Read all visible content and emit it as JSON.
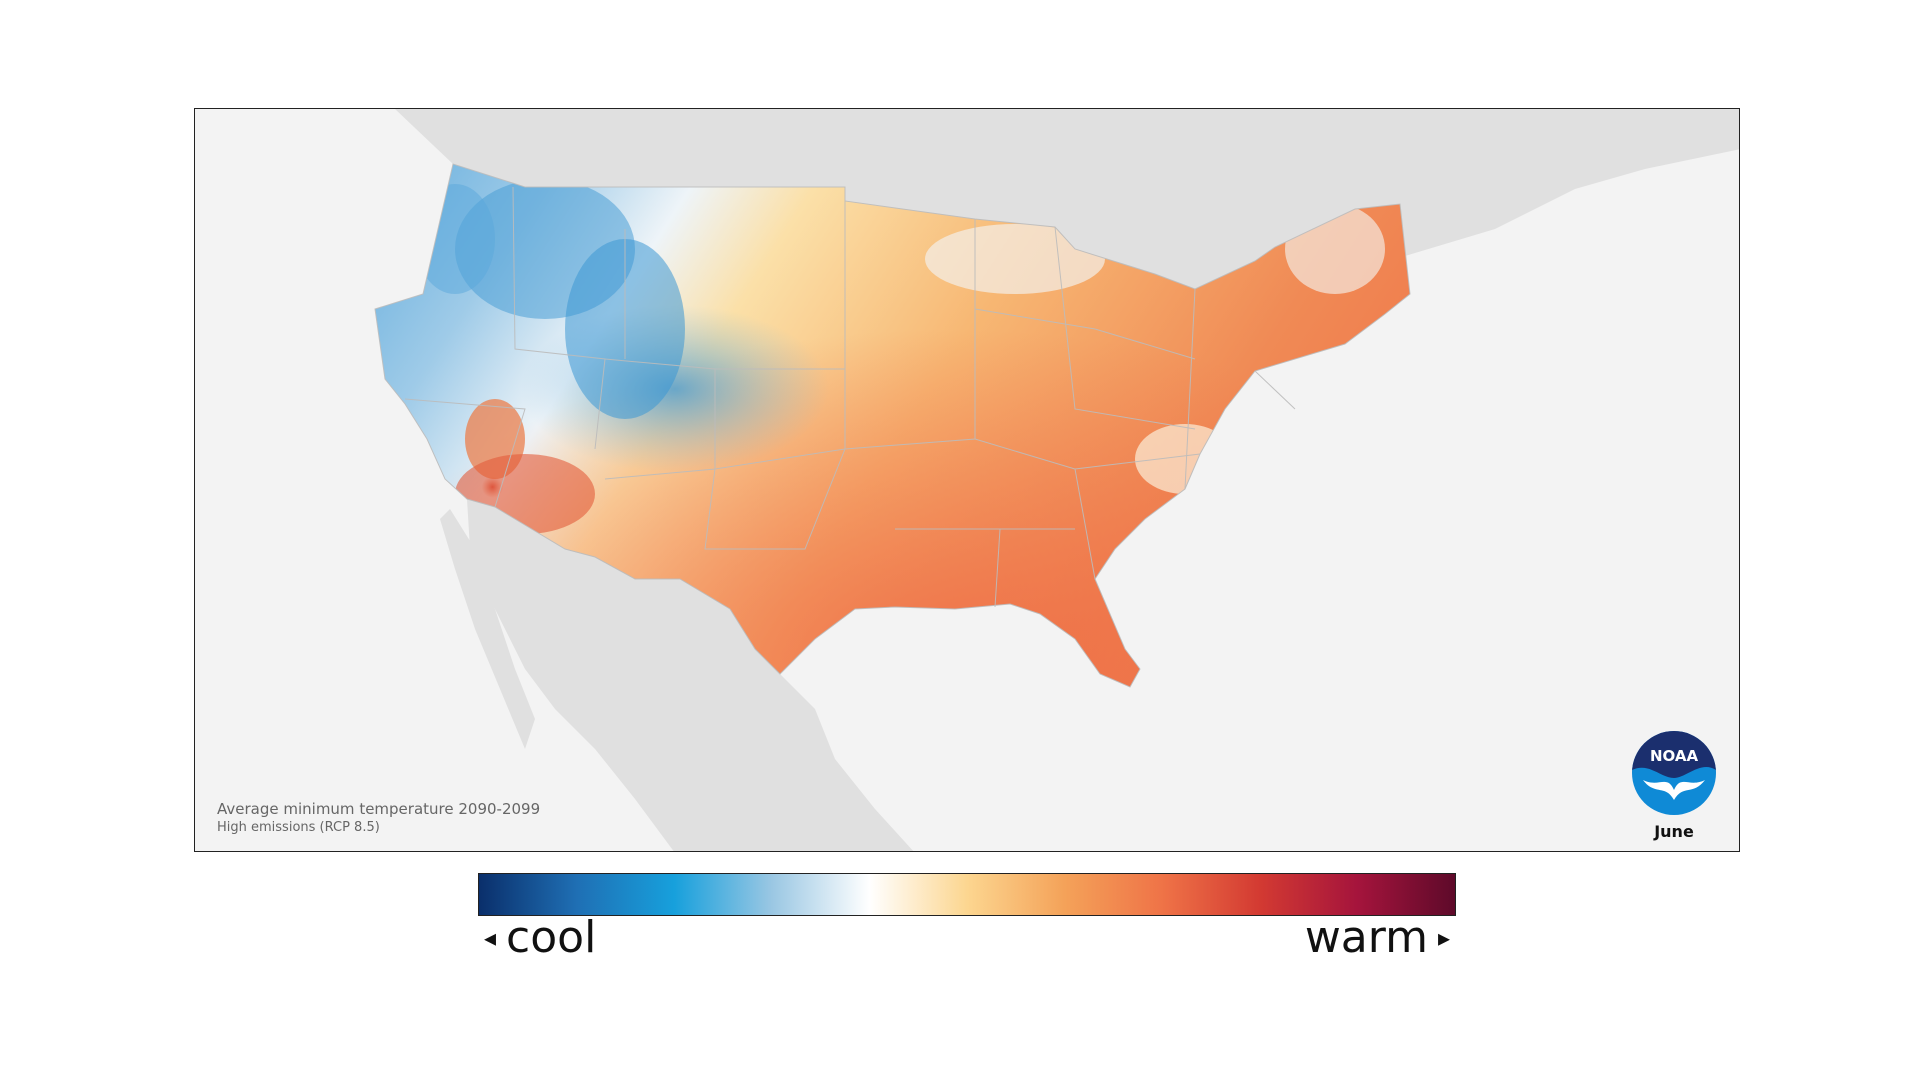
{
  "map": {
    "caption_line1": "Average minimum temperature 2090-2099",
    "caption_line2": "High emissions (RCP 8.5)",
    "month": "June",
    "logo_text": "NOAA",
    "colors": {
      "ocean": "#f3f3f3",
      "land_outside": "#e0e0e0",
      "border": "#bcbcbc"
    }
  },
  "legend": {
    "cool_label": "cool",
    "warm_label": "warm",
    "cool_arrow": "◂",
    "warm_arrow": "▸",
    "gradient_stops": [
      "#0a2f6b",
      "#1f6fb4",
      "#17a0dc",
      "#9ac7e3",
      "#ffffff",
      "#fcd690",
      "#f4a259",
      "#ef7347",
      "#d33a32",
      "#a5143c",
      "#5e0a2a"
    ]
  }
}
